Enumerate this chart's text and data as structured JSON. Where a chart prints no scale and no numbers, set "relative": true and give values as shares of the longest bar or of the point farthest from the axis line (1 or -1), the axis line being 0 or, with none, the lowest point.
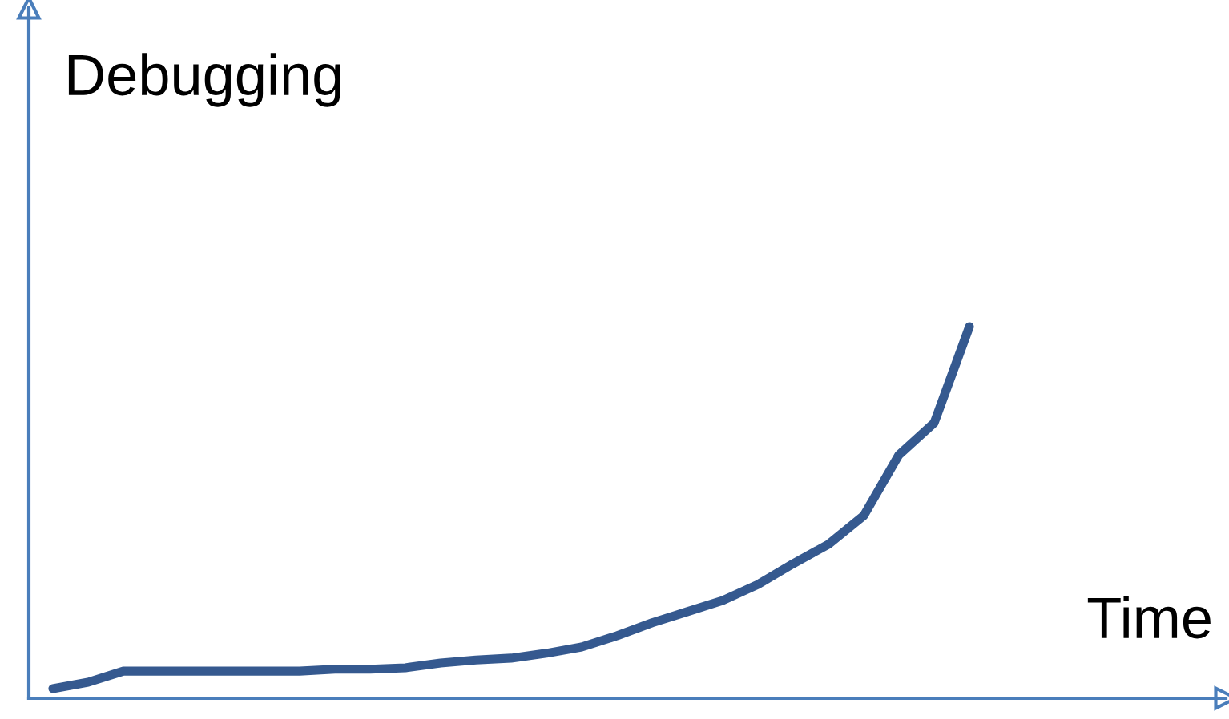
{
  "chart_data": {
    "type": "line",
    "relative": true,
    "ylabel": "Debugging",
    "xlabel": "Time",
    "grid": false,
    "legend": false,
    "marker": "none",
    "line_style": "solid",
    "categories": [
      null,
      null,
      null,
      null,
      null,
      null,
      null,
      null,
      null,
      null,
      null,
      null,
      null,
      null,
      null,
      null,
      null,
      null,
      null,
      null,
      null,
      null,
      null,
      null,
      null,
      null,
      null
    ],
    "series": [
      {
        "color": "#35598f",
        "values": [
          0.026,
          0.043,
          0.073,
          0.073,
          0.073,
          0.073,
          0.073,
          0.073,
          0.078,
          0.078,
          0.082,
          0.095,
          0.103,
          0.108,
          0.121,
          0.138,
          0.168,
          0.203,
          0.233,
          0.263,
          0.306,
          0.362,
          0.414,
          0.491,
          0.655,
          0.741,
          1
        ]
      }
    ]
  }
}
